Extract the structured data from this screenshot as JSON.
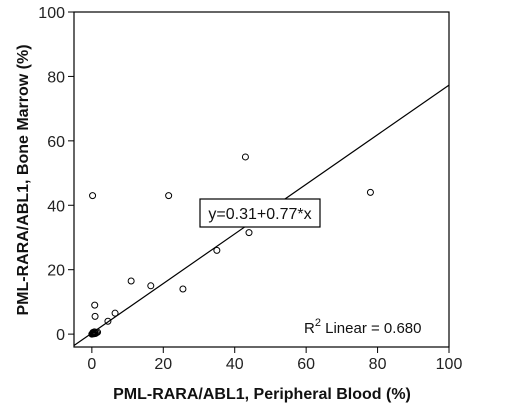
{
  "chart_data": {
    "type": "scatter",
    "xlabel": "PML-RARA/ABL1, Peripheral Blood (%)",
    "ylabel": "PML-RARA/ABL1, Bone Marrow (%)",
    "xlim": [
      -5,
      100
    ],
    "ylim": [
      -4,
      100
    ],
    "x_ticks": [
      0,
      20,
      40,
      60,
      80,
      100
    ],
    "y_ticks": [
      0,
      20,
      40,
      60,
      80,
      100
    ],
    "grid": false,
    "marker": "open-circle",
    "points": [
      {
        "x": 0,
        "y": 0
      },
      {
        "x": 0.2,
        "y": 0.1
      },
      {
        "x": 0.4,
        "y": 0.2
      },
      {
        "x": 0.6,
        "y": 0.1
      },
      {
        "x": 0.8,
        "y": 0.3
      },
      {
        "x": 1.0,
        "y": 0.2
      },
      {
        "x": 1.3,
        "y": 0.4
      },
      {
        "x": 1.6,
        "y": 0.6
      },
      {
        "x": 0.3,
        "y": 0.5
      },
      {
        "x": 0.7,
        "y": 0.7
      },
      {
        "x": 0.2,
        "y": 43
      },
      {
        "x": 0.8,
        "y": 9
      },
      {
        "x": 0.9,
        "y": 5.5
      },
      {
        "x": 4.5,
        "y": 4
      },
      {
        "x": 6.5,
        "y": 6.5
      },
      {
        "x": 11,
        "y": 16.5
      },
      {
        "x": 16.5,
        "y": 15
      },
      {
        "x": 21.5,
        "y": 43
      },
      {
        "x": 25.5,
        "y": 14
      },
      {
        "x": 35,
        "y": 26
      },
      {
        "x": 43,
        "y": 55
      },
      {
        "x": 44,
        "y": 31.5
      },
      {
        "x": 78,
        "y": 44
      }
    ],
    "fit_line": {
      "intercept": 0.31,
      "slope": 0.77
    },
    "equation_label": "y=0.31+0.77*x",
    "r2_label": {
      "prefix": "R",
      "superscript": "2",
      "text": " Linear = 0.680"
    }
  }
}
